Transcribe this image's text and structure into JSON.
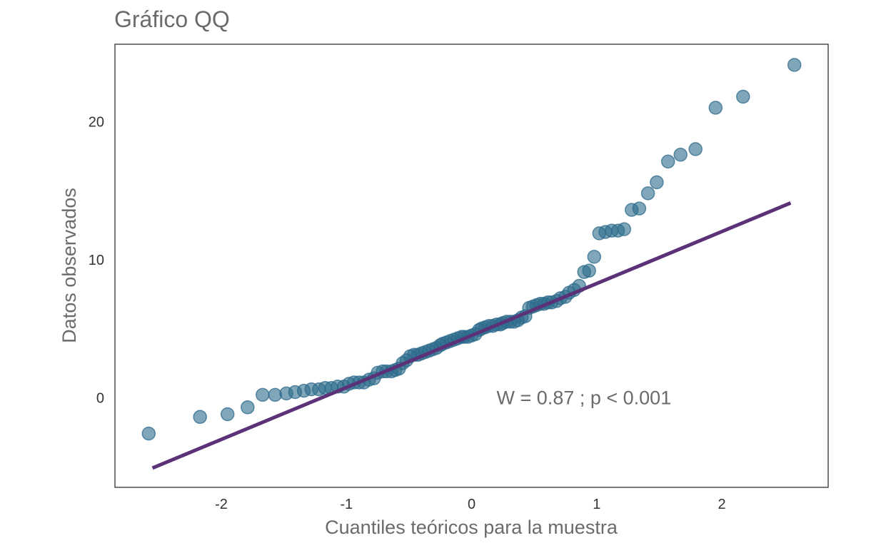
{
  "chart_data": {
    "type": "scatter",
    "title": "Gráfico QQ",
    "xlabel": "Cuantiles teóricos para la muestra",
    "ylabel": "Datos observados",
    "xlim": [
      -2.85,
      2.85
    ],
    "ylim": [
      -6.5,
      25.6
    ],
    "xticks": [
      -2,
      -1,
      0,
      1,
      2
    ],
    "xtick_labels": [
      "-2",
      "-1",
      "0",
      "1",
      "2"
    ],
    "yticks": [
      0,
      10,
      20
    ],
    "ytick_labels": [
      "0",
      "10",
      "20"
    ],
    "grid": false,
    "annotation": {
      "text": "W =  0.87 ; p  < 0.001",
      "x": 0.2,
      "y": 0.0
    },
    "series": [
      {
        "kind": "points",
        "color": "#2c6a8b",
        "points": [
          [
            -2.58,
            -2.6
          ],
          [
            -2.17,
            -1.4
          ],
          [
            -1.95,
            -1.2
          ],
          [
            -1.79,
            -0.7
          ],
          [
            -1.67,
            0.2
          ],
          [
            -1.57,
            0.2
          ],
          [
            -1.48,
            0.3
          ],
          [
            -1.41,
            0.4
          ],
          [
            -1.34,
            0.5
          ],
          [
            -1.28,
            0.6
          ],
          [
            -1.22,
            0.6
          ],
          [
            -1.17,
            0.7
          ],
          [
            -1.12,
            0.7
          ],
          [
            -1.07,
            0.8
          ],
          [
            -1.02,
            0.8
          ],
          [
            -0.98,
            1.0
          ],
          [
            -0.94,
            1.1
          ],
          [
            -0.9,
            1.1
          ],
          [
            -0.86,
            1.1
          ],
          [
            -0.82,
            1.3
          ],
          [
            -0.78,
            1.4
          ],
          [
            -0.75,
            1.8
          ],
          [
            -0.71,
            1.9
          ],
          [
            -0.68,
            1.9
          ],
          [
            -0.64,
            1.9
          ],
          [
            -0.61,
            2.0
          ],
          [
            -0.58,
            2.1
          ],
          [
            -0.55,
            2.5
          ],
          [
            -0.52,
            2.7
          ],
          [
            -0.49,
            3.0
          ],
          [
            -0.46,
            3.1
          ],
          [
            -0.43,
            3.1
          ],
          [
            -0.4,
            3.2
          ],
          [
            -0.37,
            3.3
          ],
          [
            -0.34,
            3.4
          ],
          [
            -0.31,
            3.5
          ],
          [
            -0.28,
            3.6
          ],
          [
            -0.25,
            3.8
          ],
          [
            -0.23,
            3.9
          ],
          [
            -0.2,
            4.0
          ],
          [
            -0.17,
            4.1
          ],
          [
            -0.14,
            4.2
          ],
          [
            -0.11,
            4.3
          ],
          [
            -0.08,
            4.4
          ],
          [
            -0.06,
            4.4
          ],
          [
            -0.03,
            4.4
          ],
          [
            0.0,
            4.5
          ],
          [
            0.03,
            4.6
          ],
          [
            0.06,
            4.9
          ],
          [
            0.08,
            5.0
          ],
          [
            0.11,
            5.1
          ],
          [
            0.14,
            5.2
          ],
          [
            0.17,
            5.2
          ],
          [
            0.2,
            5.3
          ],
          [
            0.23,
            5.3
          ],
          [
            0.25,
            5.4
          ],
          [
            0.28,
            5.5
          ],
          [
            0.31,
            5.5
          ],
          [
            0.34,
            5.5
          ],
          [
            0.37,
            5.6
          ],
          [
            0.4,
            5.8
          ],
          [
            0.43,
            5.9
          ],
          [
            0.46,
            6.5
          ],
          [
            0.49,
            6.6
          ],
          [
            0.52,
            6.7
          ],
          [
            0.55,
            6.8
          ],
          [
            0.58,
            6.8
          ],
          [
            0.61,
            6.9
          ],
          [
            0.64,
            6.9
          ],
          [
            0.68,
            7.0
          ],
          [
            0.71,
            7.2
          ],
          [
            0.75,
            7.3
          ],
          [
            0.78,
            7.6
          ],
          [
            0.82,
            7.8
          ],
          [
            0.86,
            8.1
          ],
          [
            0.9,
            9.1
          ],
          [
            0.94,
            9.2
          ],
          [
            0.98,
            10.2
          ],
          [
            1.02,
            11.9
          ],
          [
            1.07,
            12.0
          ],
          [
            1.12,
            12.1
          ],
          [
            1.17,
            12.1
          ],
          [
            1.22,
            12.2
          ],
          [
            1.28,
            13.6
          ],
          [
            1.34,
            13.7
          ],
          [
            1.41,
            14.8
          ],
          [
            1.48,
            15.6
          ],
          [
            1.57,
            17.1
          ],
          [
            1.67,
            17.6
          ],
          [
            1.79,
            18.0
          ],
          [
            1.95,
            21.0
          ],
          [
            2.17,
            21.8
          ],
          [
            2.58,
            24.1
          ]
        ]
      },
      {
        "kind": "reference_line",
        "color": "#5b3277",
        "x": [
          -2.55,
          2.55
        ],
        "y": [
          -5.1,
          14.1
        ]
      }
    ]
  }
}
